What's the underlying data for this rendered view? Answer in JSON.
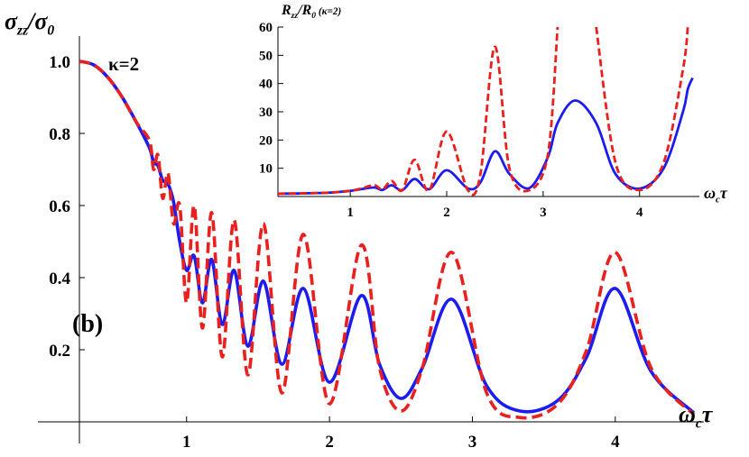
{
  "chart_data": [
    {
      "type": "line",
      "ylabel": [
        "σ",
        "zz",
        "/σ",
        "0"
      ],
      "xlabel": [
        "ω",
        "c",
        "τ"
      ],
      "annotations": [
        "κ=2",
        "(b)"
      ],
      "xlim": [
        0.25,
        4.62
      ],
      "ylim": [
        0,
        1.07
      ],
      "xticks": [
        1,
        2,
        3,
        4
      ],
      "yticks": [
        {
          "value": 0.2,
          "label": "0.2"
        },
        {
          "value": 0.4,
          "label": "0.4"
        },
        {
          "value": 0.6,
          "label": "0.6"
        },
        {
          "value": 0.8,
          "label": "0.8"
        },
        {
          "value": 1,
          "label": "1.0"
        }
      ],
      "x": [
        0.25,
        0.35,
        0.45,
        0.55,
        0.65,
        0.74,
        0.769,
        0.8,
        0.833,
        0.87,
        0.909,
        0.952,
        1.0,
        1.053,
        1.111,
        1.176,
        1.25,
        1.333,
        1.429,
        1.538,
        1.667,
        1.818,
        2.0,
        2.222,
        2.35,
        2.5,
        2.65,
        2.857,
        3.1,
        3.333,
        3.6,
        3.8,
        4.0,
        4.25,
        4.55
      ],
      "series": [
        {
          "name": "red",
          "color": "#e8201e",
          "dashed": true,
          "values": [
            1.0,
            0.99,
            0.955,
            0.9,
            0.83,
            0.78,
            0.7,
            0.74,
            0.62,
            0.69,
            0.55,
            0.6,
            0.33,
            0.6,
            0.26,
            0.58,
            0.18,
            0.56,
            0.13,
            0.55,
            0.08,
            0.52,
            0.05,
            0.49,
            0.15,
            0.03,
            0.15,
            0.47,
            0.08,
            0.012,
            0.05,
            0.2,
            0.47,
            0.15,
            0.02
          ]
        },
        {
          "name": "blue",
          "color": "#1c1cf0",
          "dashed": false,
          "values": [
            1.0,
            0.99,
            0.955,
            0.9,
            0.83,
            0.76,
            0.72,
            0.71,
            0.67,
            0.66,
            0.61,
            0.5,
            0.42,
            0.46,
            0.33,
            0.45,
            0.27,
            0.42,
            0.21,
            0.39,
            0.16,
            0.37,
            0.11,
            0.35,
            0.16,
            0.065,
            0.15,
            0.34,
            0.1,
            0.03,
            0.06,
            0.18,
            0.37,
            0.14,
            0.025
          ]
        }
      ]
    },
    {
      "type": "line",
      "ylabel": [
        "R",
        "zz",
        "/R",
        "0",
        " (κ=2)"
      ],
      "xlabel": [
        "ω",
        "c",
        "τ"
      ],
      "xlim": [
        0.25,
        4.62
      ],
      "ylim": [
        0,
        60
      ],
      "xticks": [
        1,
        2,
        3,
        4
      ],
      "yticks": [
        10,
        20,
        30,
        40,
        50,
        60
      ],
      "x": [
        0.25,
        0.5,
        0.8,
        1.0,
        1.111,
        1.25,
        1.333,
        1.429,
        1.538,
        1.667,
        1.818,
        2.0,
        2.222,
        2.35,
        2.5,
        2.65,
        2.857,
        3.05,
        3.15,
        3.333,
        3.55,
        3.75,
        4.0,
        4.25,
        4.45,
        4.5,
        4.55
      ],
      "series": [
        {
          "name": "red",
          "color": "#e8201e",
          "dashed": true,
          "values": [
            1,
            1.1,
            1.4,
            2,
            2.8,
            4,
            2.5,
            5.5,
            2.2,
            13,
            2.1,
            23,
            2.1,
            8,
            53,
            10,
            2.2,
            15,
            60,
            null,
            60,
            12,
            2.3,
            12,
            45,
            60,
            null
          ]
        },
        {
          "name": "blue",
          "color": "#1c1cf0",
          "dashed": false,
          "values": [
            1,
            1.1,
            1.4,
            2,
            2.6,
            3.2,
            2.3,
            4,
            2.2,
            6.2,
            2.6,
            9.3,
            2.8,
            5,
            16,
            8,
            3,
            14,
            26,
            34,
            26,
            8,
            2.8,
            10,
            30,
            38,
            42
          ]
        }
      ]
    }
  ]
}
